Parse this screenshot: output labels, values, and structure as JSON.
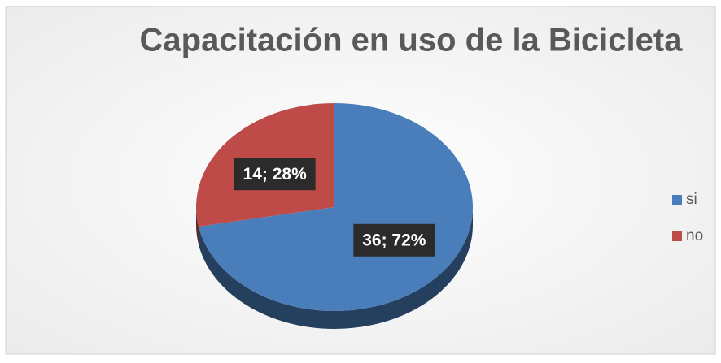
{
  "chart_data": {
    "type": "pie",
    "title": "Capacitación en uso de la Bicicleta",
    "categories": [
      "si",
      "no"
    ],
    "values": [
      36,
      14
    ],
    "value_labels": [
      "36; 72%",
      "14; 28%"
    ],
    "colors": [
      "#4a7ebb",
      "#be4b48"
    ],
    "legend": "right"
  }
}
